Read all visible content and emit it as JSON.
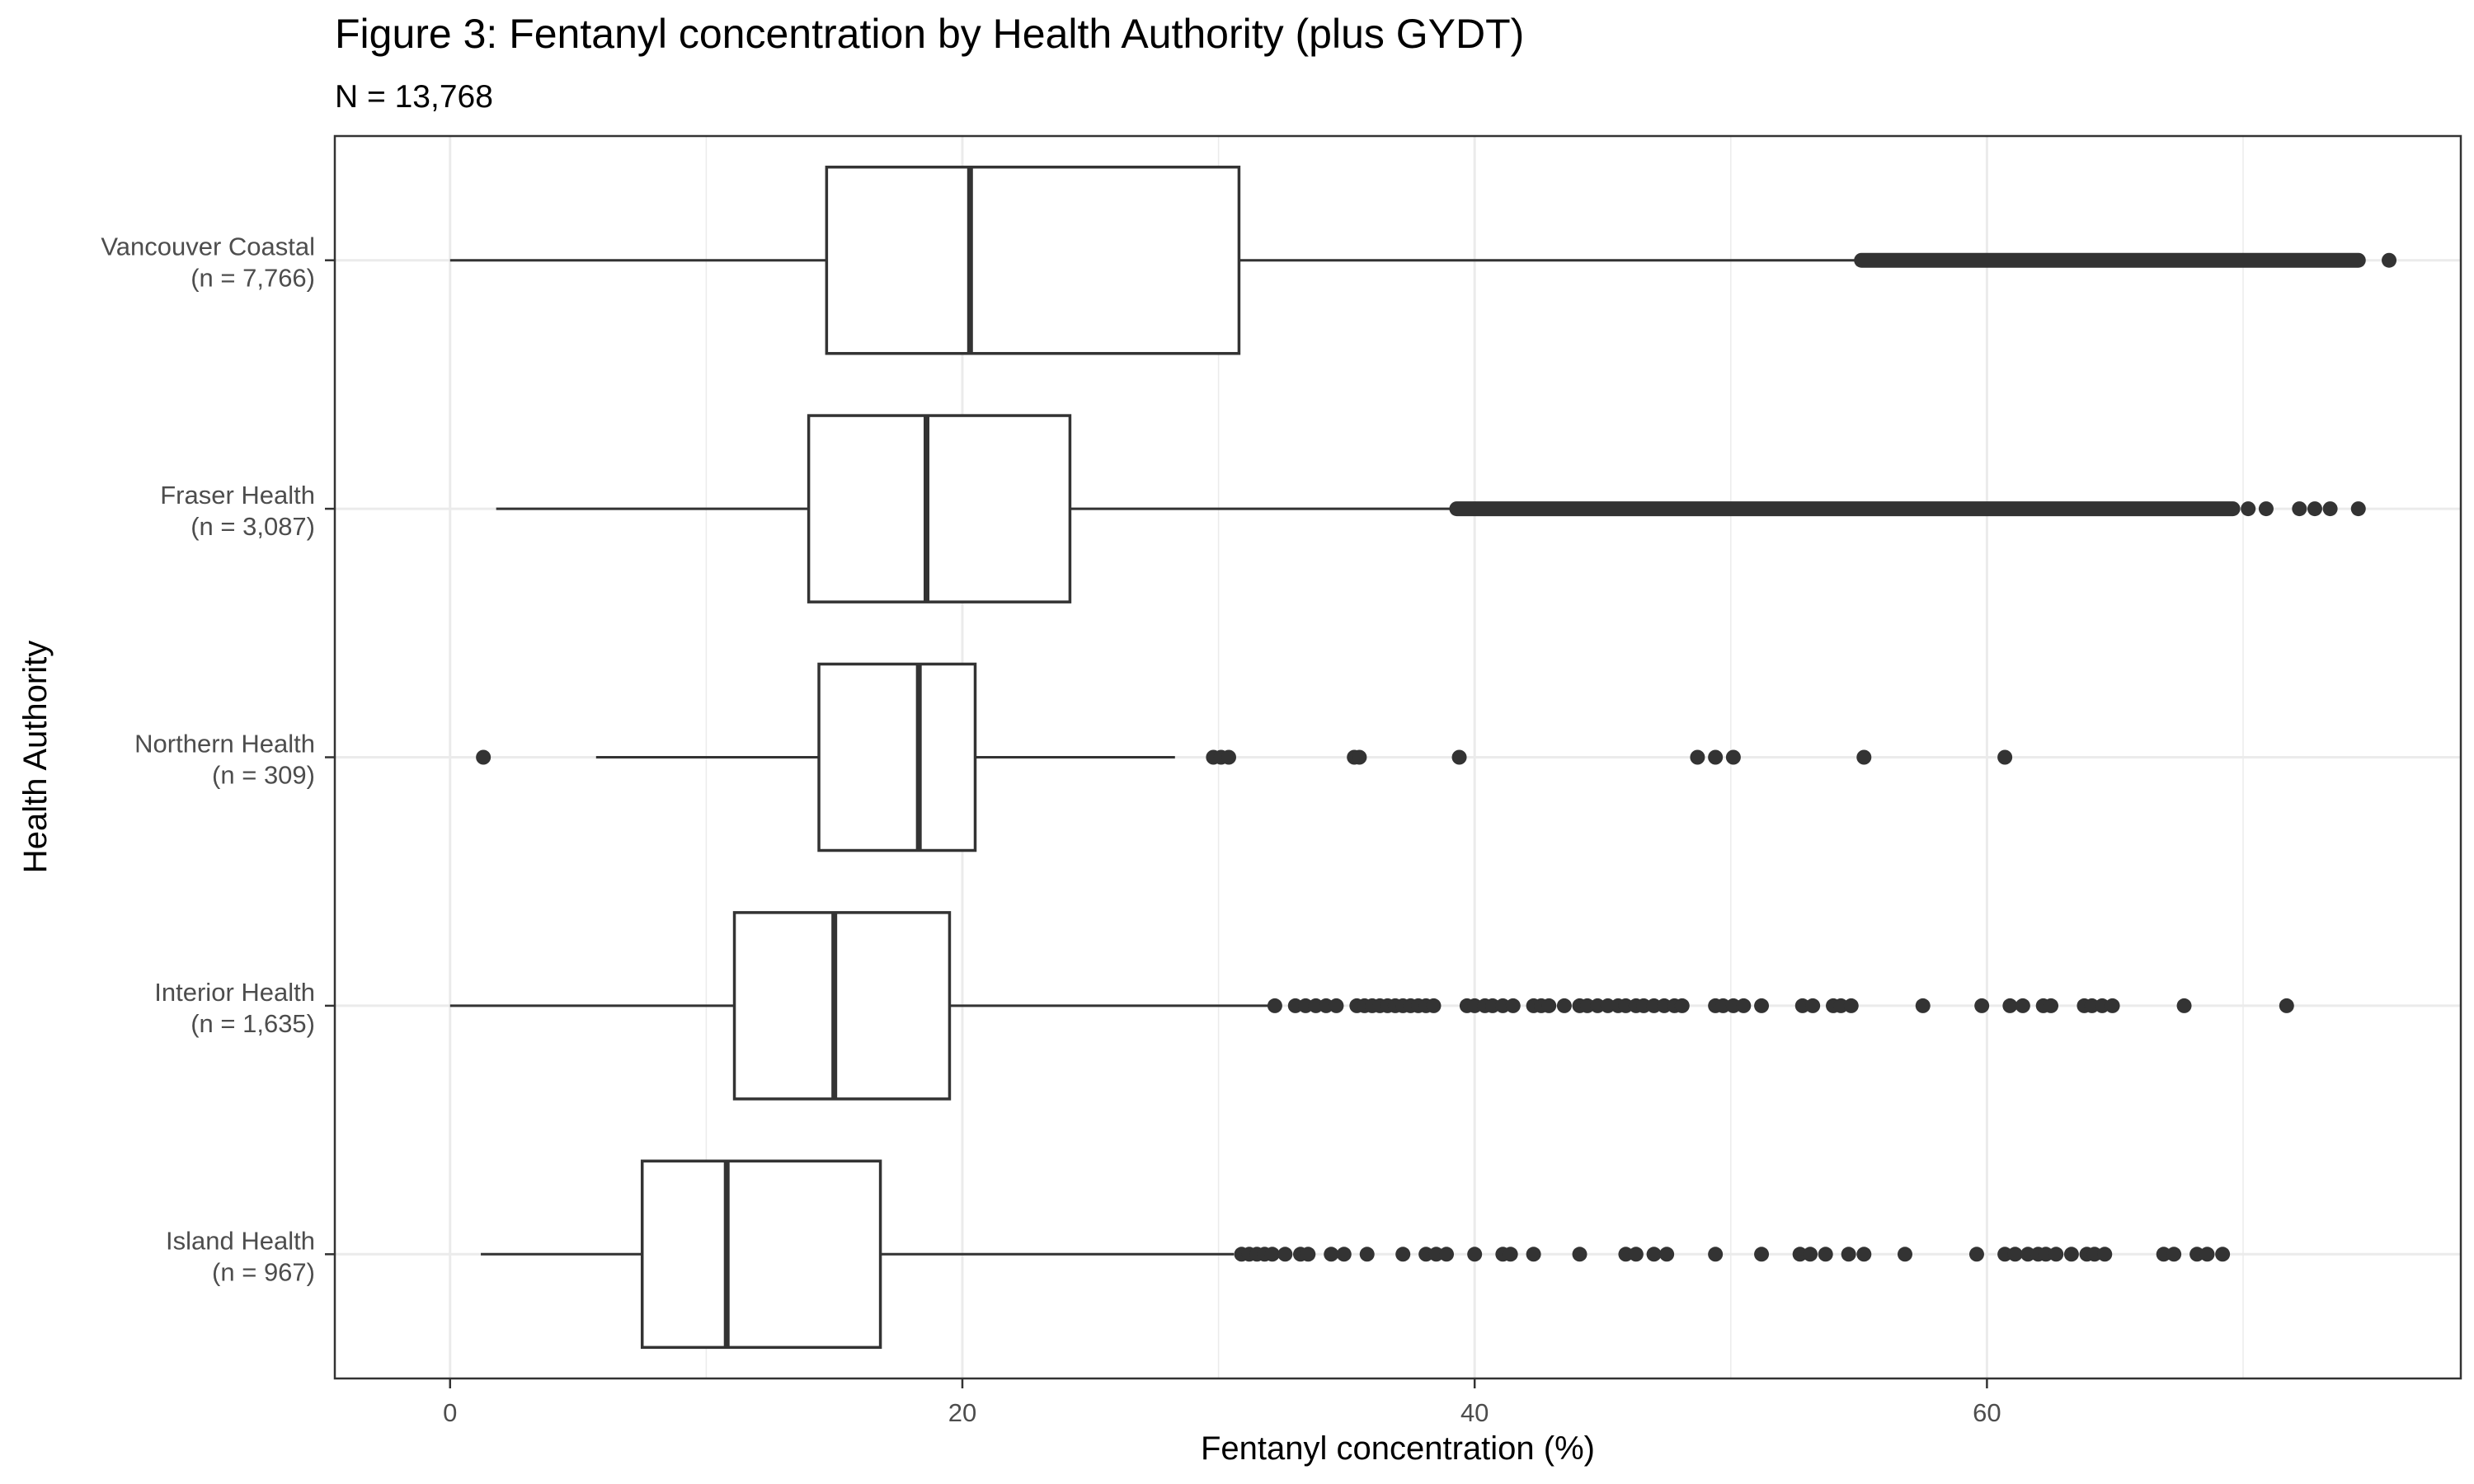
{
  "chart_data": {
    "type": "boxplot",
    "orientation": "horizontal",
    "title": "Figure 3: Fentanyl concentration by Health Authority (plus GYDT)",
    "subtitle": "N = 13,768",
    "xlabel": "Fentanyl concentration (%)",
    "ylabel": "Health Authority",
    "xlim": [
      -4.5,
      78.5
    ],
    "x_ticks": [
      0,
      20,
      40,
      60
    ],
    "grid": true,
    "colors": {
      "stroke": "#333333",
      "grid": "#ebebeb",
      "panel_border": "#333333",
      "fill": "#ffffff"
    },
    "series": [
      {
        "label_line1": "Vancouver Coastal",
        "label_line2": "(n = 7,766)",
        "whisker_low": 0,
        "q1": 14.7,
        "median": 20.3,
        "q3": 30.8,
        "whisker_high": 55.1,
        "outlier_band": [
          55.1,
          74.5
        ],
        "outliers": [
          75.7
        ]
      },
      {
        "label_line1": "Fraser Health",
        "label_line2": "(n = 3,087)",
        "whisker_low": 1.8,
        "q1": 14.0,
        "median": 18.6,
        "q3": 24.2,
        "whisker_high": 39.3,
        "outlier_band": [
          39.3,
          69.6
        ],
        "outliers": [
          70.2,
          70.9,
          72.2,
          72.8,
          73.4,
          74.5
        ]
      },
      {
        "label_line1": "Northern Health",
        "label_line2": "(n = 309)",
        "whisker_low": 5.7,
        "q1": 14.4,
        "median": 18.3,
        "q3": 20.5,
        "whisker_high": 28.3,
        "outlier_band": [],
        "outliers": [
          1.3,
          29.8,
          30.1,
          30.4,
          35.3,
          35.5,
          39.4,
          48.7,
          49.4,
          50.1,
          55.2,
          60.7
        ]
      },
      {
        "label_line1": "Interior Health",
        "label_line2": "(n = 1,635)",
        "whisker_low": 0,
        "q1": 11.1,
        "median": 15.0,
        "q3": 19.5,
        "whisker_high": 32.2,
        "outlier_band": [],
        "outliers": [
          32.2,
          33.0,
          33.4,
          33.8,
          34.2,
          34.6,
          35.4,
          35.7,
          36.0,
          36.3,
          36.6,
          36.9,
          37.2,
          37.5,
          37.8,
          38.1,
          38.4,
          39.7,
          40.0,
          40.4,
          40.7,
          41.1,
          41.5,
          42.3,
          42.6,
          42.9,
          43.5,
          44.1,
          44.4,
          44.8,
          45.2,
          45.6,
          45.9,
          46.3,
          46.6,
          47.0,
          47.4,
          47.8,
          48.1,
          49.4,
          49.7,
          50.1,
          50.5,
          51.2,
          52.8,
          53.2,
          54.0,
          54.3,
          54.7,
          57.5,
          59.8,
          60.9,
          61.4,
          62.2,
          62.5,
          63.8,
          64.1,
          64.5,
          64.9,
          67.7,
          71.7
        ]
      },
      {
        "label_line1": "Island Health",
        "label_line2": "(n = 967)",
        "whisker_low": 1.2,
        "q1": 7.5,
        "median": 10.8,
        "q3": 16.8,
        "whisker_high": 30.6,
        "outlier_band": [],
        "outliers": [
          30.9,
          31.2,
          31.5,
          31.8,
          32.1,
          32.6,
          33.2,
          33.5,
          34.4,
          34.9,
          35.8,
          37.2,
          38.1,
          38.5,
          38.9,
          40.0,
          41.1,
          41.4,
          42.3,
          44.1,
          45.9,
          46.3,
          47.0,
          47.5,
          49.4,
          51.2,
          52.7,
          53.1,
          53.7,
          54.6,
          55.2,
          56.8,
          59.6,
          60.7,
          61.1,
          61.6,
          62.0,
          62.3,
          62.7,
          63.3,
          63.9,
          64.2,
          64.6,
          66.9,
          67.3,
          68.2,
          68.6,
          69.2
        ]
      }
    ]
  }
}
